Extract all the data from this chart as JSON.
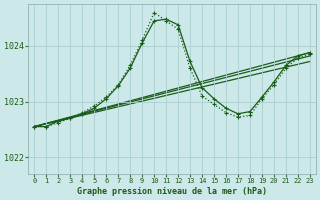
{
  "title": "Graphe pression niveau de la mer (hPa)",
  "bg_color": "#cce8e8",
  "grid_color": "#aad0d0",
  "line_color": "#1a5c1a",
  "xlim": [
    -0.5,
    23.5
  ],
  "ylim": [
    1021.7,
    1024.75
  ],
  "yticks": [
    1022,
    1023,
    1024
  ],
  "xticks": [
    0,
    1,
    2,
    3,
    4,
    5,
    6,
    7,
    8,
    9,
    10,
    11,
    12,
    13,
    14,
    15,
    16,
    17,
    18,
    19,
    20,
    21,
    22,
    23
  ],
  "curve_solid": [
    1022.55,
    1022.55,
    1022.65,
    1022.7,
    1022.78,
    1022.88,
    1023.05,
    1023.28,
    1023.6,
    1024.05,
    1024.45,
    1024.48,
    1024.38,
    1023.72,
    1023.25,
    1023.05,
    1022.88,
    1022.78,
    1022.82,
    1023.08,
    1023.35,
    1023.65,
    1023.82,
    1023.88
  ],
  "curve_dot": [
    1022.55,
    1022.55,
    1022.62,
    1022.7,
    1022.8,
    1022.92,
    1023.08,
    1023.3,
    1023.65,
    1024.1,
    1024.6,
    1024.45,
    1024.3,
    1023.6,
    1023.1,
    1022.95,
    1022.8,
    1022.72,
    1022.75,
    1023.05,
    1023.3,
    1023.6,
    1023.78,
    1023.85
  ],
  "line1_x": [
    0,
    23
  ],
  "line1_y": [
    1022.55,
    1023.88
  ],
  "line2_x": [
    0,
    23
  ],
  "line2_y": [
    1022.55,
    1023.82
  ],
  "line3_x": [
    0,
    23
  ],
  "line3_y": [
    1022.55,
    1023.72
  ]
}
